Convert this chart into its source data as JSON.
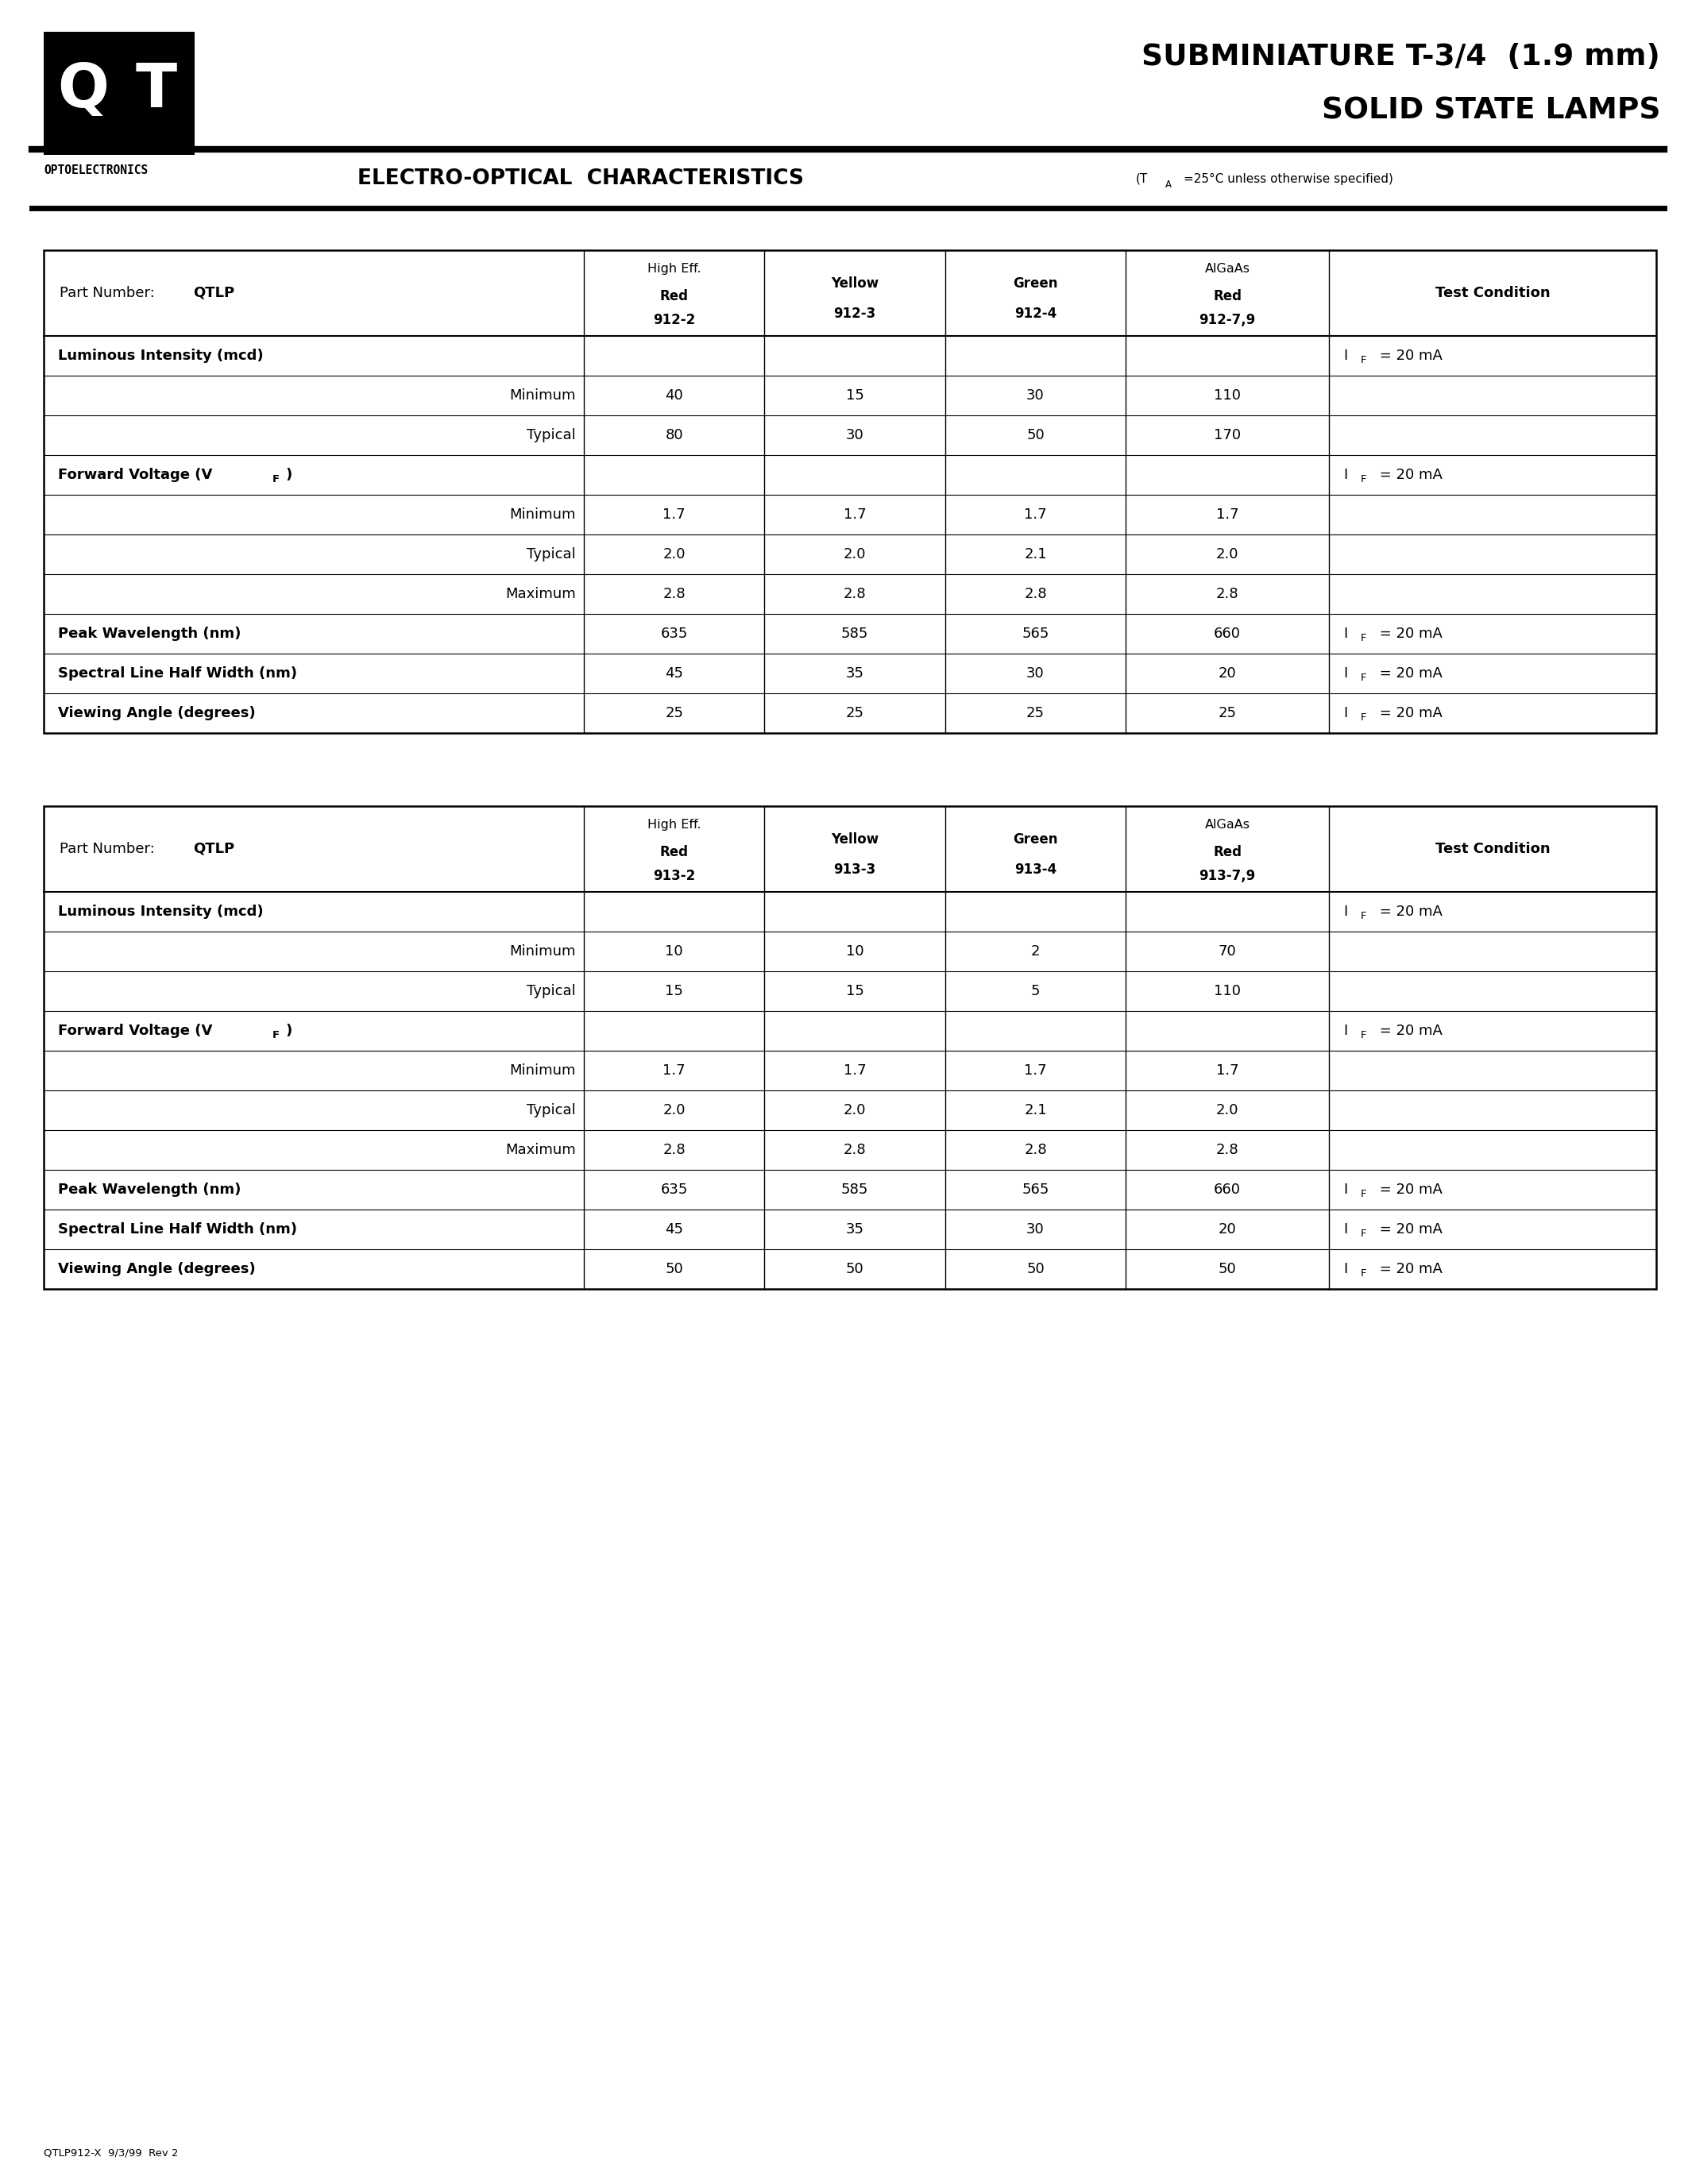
{
  "page_title_line1": "SUBMINIATURE T-3/4  (1.9 mm)",
  "page_title_line2": "SOLID STATE LAMPS",
  "company": "OPTOELECTRONICS",
  "section_title": "ELECTRO-OPTICAL  CHARACTERISTICS",
  "section_subtitle": "T₂=25°C unless otherwise specified",
  "footer": "QTLP912-X  9/3/99  Rev 2",
  "table1": {
    "col_headers_row1": [
      "High Eff.",
      "",
      "",
      "AlGaAs",
      ""
    ],
    "col_headers_row2": [
      "Red",
      "Yellow",
      "Green",
      "Red",
      "Test Condition"
    ],
    "col_headers_row3": [
      "912-2",
      "912-3",
      "912-4",
      "912-7,9",
      ""
    ],
    "rows": [
      {
        "label": "Luminous Intensity (mcd)",
        "bold": true,
        "right": false,
        "values": [
          "",
          "",
          "",
          ""
        ],
        "condition": "IF"
      },
      {
        "label": "Minimum",
        "bold": false,
        "right": true,
        "values": [
          "40",
          "15",
          "30",
          "110"
        ],
        "condition": ""
      },
      {
        "label": "Typical",
        "bold": false,
        "right": true,
        "values": [
          "80",
          "30",
          "50",
          "170"
        ],
        "condition": ""
      },
      {
        "label": "Forward Voltage (VF)",
        "bold": true,
        "right": false,
        "values": [
          "",
          "",
          "",
          ""
        ],
        "condition": "IF"
      },
      {
        "label": "Minimum",
        "bold": false,
        "right": true,
        "values": [
          "1.7",
          "1.7",
          "1.7",
          "1.7"
        ],
        "condition": ""
      },
      {
        "label": "Typical",
        "bold": false,
        "right": true,
        "values": [
          "2.0",
          "2.0",
          "2.1",
          "2.0"
        ],
        "condition": ""
      },
      {
        "label": "Maximum",
        "bold": false,
        "right": true,
        "values": [
          "2.8",
          "2.8",
          "2.8",
          "2.8"
        ],
        "condition": ""
      },
      {
        "label": "Peak Wavelength (nm)",
        "bold": true,
        "right": false,
        "values": [
          "635",
          "585",
          "565",
          "660"
        ],
        "condition": "IF"
      },
      {
        "label": "Spectral Line Half Width (nm)",
        "bold": true,
        "right": false,
        "values": [
          "45",
          "35",
          "30",
          "20"
        ],
        "condition": "IF"
      },
      {
        "label": "Viewing Angle (degrees)",
        "bold": true,
        "right": false,
        "values": [
          "25",
          "25",
          "25",
          "25"
        ],
        "condition": "IF"
      }
    ]
  },
  "table2": {
    "col_headers_row1": [
      "High Eff.",
      "",
      "",
      "AlGaAs",
      ""
    ],
    "col_headers_row2": [
      "Red",
      "Yellow",
      "Green",
      "Red",
      "Test Condition"
    ],
    "col_headers_row3": [
      "913-2",
      "913-3",
      "913-4",
      "913-7,9",
      ""
    ],
    "rows": [
      {
        "label": "Luminous Intensity (mcd)",
        "bold": true,
        "right": false,
        "values": [
          "",
          "",
          "",
          ""
        ],
        "condition": "IF"
      },
      {
        "label": "Minimum",
        "bold": false,
        "right": true,
        "values": [
          "10",
          "10",
          "2",
          "70"
        ],
        "condition": ""
      },
      {
        "label": "Typical",
        "bold": false,
        "right": true,
        "values": [
          "15",
          "15",
          "5",
          "110"
        ],
        "condition": ""
      },
      {
        "label": "Forward Voltage (VF)",
        "bold": true,
        "right": false,
        "values": [
          "",
          "",
          "",
          ""
        ],
        "condition": "IF"
      },
      {
        "label": "Minimum",
        "bold": false,
        "right": true,
        "values": [
          "1.7",
          "1.7",
          "1.7",
          "1.7"
        ],
        "condition": ""
      },
      {
        "label": "Typical",
        "bold": false,
        "right": true,
        "values": [
          "2.0",
          "2.0",
          "2.1",
          "2.0"
        ],
        "condition": ""
      },
      {
        "label": "Maximum",
        "bold": false,
        "right": true,
        "values": [
          "2.8",
          "2.8",
          "2.8",
          "2.8"
        ],
        "condition": ""
      },
      {
        "label": "Peak Wavelength (nm)",
        "bold": true,
        "right": false,
        "values": [
          "635",
          "585",
          "565",
          "660"
        ],
        "condition": "IF"
      },
      {
        "label": "Spectral Line Half Width (nm)",
        "bold": true,
        "right": false,
        "values": [
          "45",
          "35",
          "30",
          "20"
        ],
        "condition": "IF"
      },
      {
        "label": "Viewing Angle (degrees)",
        "bold": true,
        "right": false,
        "values": [
          "50",
          "50",
          "50",
          "50"
        ],
        "condition": "IF"
      }
    ]
  },
  "bg_color": "#ffffff"
}
